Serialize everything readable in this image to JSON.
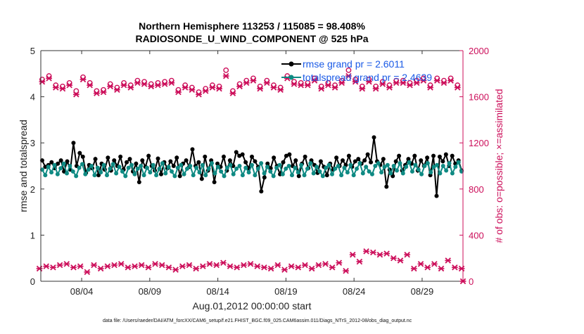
{
  "chart_data": {
    "type": "line",
    "title_line1": "Northern Hemisphere 113253 / 115085 = 98.408%",
    "title_line2": "RADIOSONDE_U_WIND_COMPONENT @ 525 hPa",
    "xlabel": "Aug.01,2012 00:00:00 start",
    "ylabel_left": "rmse and totalspread",
    "ylabel_right": "# of obs: o=possible; ×=assimilated",
    "footer": "data file: /Users/raeder/DAI/ATM_forcXX/CAM6_setup/f.e21.FHIST_BGC.f09_025.CAM6assim.011/Diags_NTrS_2012-08/obs_diag_output.nc",
    "x_tick_labels": [
      "08/04",
      "08/09",
      "08/14",
      "08/19",
      "08/24",
      "08/29"
    ],
    "x_tick_days": [
      4,
      9,
      14,
      19,
      24,
      29
    ],
    "xlim_days": [
      1,
      32
    ],
    "ylim_left": [
      0,
      5
    ],
    "y_ticks_left": [
      "0",
      "1",
      "2",
      "3",
      "4",
      "5"
    ],
    "ylim_right": [
      0,
      2000
    ],
    "y_ticks_right": [
      "0",
      "400",
      "800",
      "1200",
      "1600",
      "2000"
    ],
    "legend": [
      {
        "name": "rmse grand pr = 2.6011",
        "color": "#000000"
      },
      {
        "name": "totalspread grand pr = 2.4639",
        "color": "#0f8a83"
      }
    ],
    "colors": {
      "rmse": "#000000",
      "spread": "#0f8a83",
      "obs": "#cc0e5a",
      "legend_text": "#1a5ae6"
    },
    "rmse": [
      2.62,
      2.48,
      2.52,
      2.58,
      2.45,
      2.55,
      2.62,
      2.38,
      2.6,
      2.42,
      3.0,
      2.5,
      2.78,
      2.7,
      2.35,
      2.52,
      2.45,
      2.65,
      2.3,
      2.55,
      2.42,
      2.68,
      2.4,
      2.62,
      2.5,
      2.7,
      2.42,
      2.58,
      2.65,
      2.38,
      2.55,
      2.15,
      2.62,
      2.48,
      2.72,
      2.5,
      2.4,
      2.66,
      2.32,
      2.58,
      2.45,
      2.6,
      2.5,
      2.68,
      2.28,
      2.55,
      2.62,
      2.48,
      2.86,
      2.5,
      2.58,
      2.22,
      2.7,
      2.4,
      2.62,
      2.15,
      2.55,
      2.48,
      2.7,
      2.4,
      2.62,
      2.5,
      2.8,
      2.72,
      2.75,
      2.58,
      2.45,
      2.7,
      2.6,
      2.48,
      1.95,
      2.25,
      2.55,
      2.45,
      2.68,
      2.5,
      2.32,
      2.58,
      2.72,
      2.75,
      2.5,
      2.62,
      2.28,
      2.55,
      2.7,
      2.45,
      2.62,
      2.52,
      2.35,
      2.6,
      2.48,
      2.3,
      2.55,
      2.42,
      2.68,
      2.5,
      2.62,
      2.52,
      2.72,
      2.48,
      2.6,
      2.65,
      2.55,
      2.62,
      2.75,
      2.58,
      3.12,
      2.6,
      2.52,
      2.65,
      2.05,
      2.42,
      2.28,
      2.6,
      2.72,
      2.4,
      2.52,
      2.65,
      2.55,
      2.72,
      2.4,
      2.62,
      2.5,
      2.68,
      2.3,
      2.72,
      1.85,
      2.7,
      2.6,
      2.75,
      2.5,
      2.72,
      2.55,
      2.62,
      2.4
    ],
    "spread": [
      2.42,
      2.3,
      2.48,
      2.36,
      2.52,
      2.32,
      2.45,
      2.55,
      2.34,
      2.5,
      2.38,
      2.28,
      2.46,
      2.54,
      2.32,
      2.42,
      2.5,
      2.3,
      2.46,
      2.36,
      2.52,
      2.3,
      2.44,
      2.54,
      2.34,
      2.48,
      2.38,
      2.28,
      2.46,
      2.52,
      2.32,
      2.44,
      2.5,
      2.3,
      2.46,
      2.36,
      2.52,
      2.3,
      2.44,
      2.56,
      2.34,
      2.48,
      2.38,
      2.28,
      2.46,
      2.52,
      2.32,
      2.44,
      2.5,
      2.3,
      2.46,
      2.36,
      2.52,
      2.3,
      2.44,
      2.56,
      2.34,
      2.48,
      2.38,
      2.28,
      2.46,
      2.52,
      2.32,
      2.44,
      2.5,
      2.3,
      2.46,
      2.36,
      2.52,
      2.3,
      2.44,
      2.56,
      2.34,
      2.48,
      2.38,
      2.28,
      2.46,
      2.52,
      2.32,
      2.44,
      2.5,
      2.3,
      2.46,
      2.36,
      2.52,
      2.3,
      2.44,
      2.56,
      2.34,
      2.48,
      2.38,
      2.28,
      2.46,
      2.52,
      2.32,
      2.44,
      2.5,
      2.3,
      2.46,
      2.36,
      2.52,
      2.3,
      2.44,
      2.56,
      2.34,
      2.48,
      2.38,
      2.32,
      2.5,
      2.56,
      2.36,
      2.48,
      2.52,
      2.34,
      2.5,
      2.4,
      2.56,
      2.34,
      2.48,
      2.58,
      2.38,
      2.52,
      2.42,
      2.32,
      2.5,
      2.56,
      2.36,
      2.48,
      2.52,
      2.34,
      2.5,
      2.4,
      2.56,
      2.34,
      2.48,
      2.58,
      2.38
    ],
    "obs_possible": [
      [
        1.1,
        1750
      ],
      [
        1.6,
        1780
      ],
      [
        2.1,
        1700
      ],
      [
        2.6,
        1690
      ],
      [
        3.1,
        1720
      ],
      [
        3.6,
        1650
      ],
      [
        4.1,
        1770
      ],
      [
        4.6,
        1720
      ],
      [
        5.1,
        1650
      ],
      [
        5.6,
        1660
      ],
      [
        6.1,
        1710
      ],
      [
        6.6,
        1680
      ],
      [
        7.1,
        1720
      ],
      [
        7.6,
        1700
      ],
      [
        8.1,
        1740
      ],
      [
        8.6,
        1730
      ],
      [
        9.1,
        1710
      ],
      [
        9.6,
        1720
      ],
      [
        10.1,
        1730
      ],
      [
        10.6,
        1740
      ],
      [
        11.1,
        1660
      ],
      [
        11.6,
        1700
      ],
      [
        12.1,
        1680
      ],
      [
        12.6,
        1640
      ],
      [
        13.1,
        1670
      ],
      [
        13.6,
        1700
      ],
      [
        14.1,
        1690
      ],
      [
        14.6,
        1830
      ],
      [
        15.1,
        1650
      ],
      [
        15.6,
        1710
      ],
      [
        16.1,
        1740
      ],
      [
        16.6,
        1760
      ],
      [
        17.1,
        1690
      ],
      [
        17.6,
        1740
      ],
      [
        18.1,
        1700
      ],
      [
        18.6,
        1680
      ],
      [
        19.1,
        1780
      ],
      [
        19.6,
        1730
      ],
      [
        20.1,
        1720
      ],
      [
        20.6,
        1720
      ],
      [
        21.1,
        1760
      ],
      [
        21.6,
        1690
      ],
      [
        22.1,
        1720
      ],
      [
        22.6,
        1700
      ],
      [
        23.1,
        1740
      ],
      [
        23.6,
        1830
      ],
      [
        24.1,
        1750
      ],
      [
        24.6,
        1690
      ],
      [
        25.1,
        1750
      ],
      [
        25.6,
        1690
      ],
      [
        26.1,
        1730
      ],
      [
        26.6,
        1700
      ],
      [
        27.1,
        1740
      ],
      [
        27.6,
        1740
      ],
      [
        28.1,
        1720
      ],
      [
        28.6,
        1740
      ],
      [
        29.1,
        1760
      ],
      [
        29.6,
        1700
      ],
      [
        30.1,
        1760
      ],
      [
        30.6,
        1740
      ],
      [
        31.1,
        1760
      ],
      [
        31.6,
        1700
      ]
    ],
    "obs_assimilated": [
      [
        0.9,
        110
      ],
      [
        1.1,
        1730
      ],
      [
        1.6,
        1760
      ],
      [
        1.4,
        130
      ],
      [
        2.1,
        1680
      ],
      [
        2.6,
        1670
      ],
      [
        1.9,
        120
      ],
      [
        2.4,
        140
      ],
      [
        2.9,
        150
      ],
      [
        3.1,
        1700
      ],
      [
        3.6,
        1620
      ],
      [
        3.4,
        120
      ],
      [
        3.9,
        130
      ],
      [
        4.1,
        1750
      ],
      [
        4.4,
        80
      ],
      [
        4.6,
        1700
      ],
      [
        4.9,
        140
      ],
      [
        5.1,
        1630
      ],
      [
        5.4,
        110
      ],
      [
        5.6,
        1640
      ],
      [
        5.9,
        130
      ],
      [
        6.1,
        1690
      ],
      [
        6.4,
        140
      ],
      [
        6.6,
        1660
      ],
      [
        6.9,
        150
      ],
      [
        7.1,
        1700
      ],
      [
        7.4,
        120
      ],
      [
        7.6,
        1680
      ],
      [
        7.9,
        130
      ],
      [
        8.1,
        1720
      ],
      [
        8.4,
        140
      ],
      [
        8.6,
        1710
      ],
      [
        8.9,
        120
      ],
      [
        9.1,
        1690
      ],
      [
        9.4,
        150
      ],
      [
        9.6,
        1700
      ],
      [
        9.9,
        140
      ],
      [
        10.1,
        1710
      ],
      [
        10.4,
        120
      ],
      [
        10.6,
        1720
      ],
      [
        10.9,
        100
      ],
      [
        11.1,
        1640
      ],
      [
        11.4,
        130
      ],
      [
        11.6,
        1680
      ],
      [
        11.9,
        140
      ],
      [
        12.1,
        1660
      ],
      [
        12.4,
        110
      ],
      [
        12.6,
        1620
      ],
      [
        12.9,
        130
      ],
      [
        13.1,
        1650
      ],
      [
        13.4,
        150
      ],
      [
        13.6,
        1680
      ],
      [
        13.9,
        140
      ],
      [
        14.1,
        1670
      ],
      [
        14.4,
        160
      ],
      [
        14.6,
        1780
      ],
      [
        14.9,
        130
      ],
      [
        15.1,
        1630
      ],
      [
        15.4,
        120
      ],
      [
        15.6,
        1690
      ],
      [
        15.9,
        140
      ],
      [
        16.1,
        1720
      ],
      [
        16.4,
        150
      ],
      [
        16.6,
        1740
      ],
      [
        16.9,
        130
      ],
      [
        17.1,
        1670
      ],
      [
        17.4,
        120
      ],
      [
        17.6,
        1720
      ],
      [
        17.9,
        110
      ],
      [
        18.1,
        1680
      ],
      [
        18.4,
        140
      ],
      [
        18.6,
        1660
      ],
      [
        18.9,
        100
      ],
      [
        19.1,
        1760
      ],
      [
        19.4,
        130
      ],
      [
        19.6,
        1710
      ],
      [
        19.9,
        120
      ],
      [
        20.1,
        1700
      ],
      [
        20.4,
        140
      ],
      [
        20.6,
        1700
      ],
      [
        20.9,
        110
      ],
      [
        21.1,
        1740
      ],
      [
        21.4,
        140
      ],
      [
        21.6,
        1670
      ],
      [
        21.9,
        150
      ],
      [
        22.1,
        1700
      ],
      [
        22.4,
        120
      ],
      [
        22.6,
        1680
      ],
      [
        22.9,
        160
      ],
      [
        23.1,
        1720
      ],
      [
        23.4,
        90
      ],
      [
        23.6,
        1780
      ],
      [
        23.9,
        230
      ],
      [
        24.1,
        1730
      ],
      [
        24.4,
        170
      ],
      [
        24.6,
        1670
      ],
      [
        24.9,
        260
      ],
      [
        25.1,
        1730
      ],
      [
        25.4,
        250
      ],
      [
        25.6,
        1670
      ],
      [
        25.9,
        230
      ],
      [
        26.1,
        1710
      ],
      [
        26.4,
        240
      ],
      [
        26.6,
        1680
      ],
      [
        26.9,
        200
      ],
      [
        27.1,
        1720
      ],
      [
        27.4,
        180
      ],
      [
        27.6,
        1720
      ],
      [
        27.9,
        230
      ],
      [
        28.1,
        1700
      ],
      [
        28.4,
        110
      ],
      [
        28.6,
        1720
      ],
      [
        28.9,
        150
      ],
      [
        29.1,
        1740
      ],
      [
        29.4,
        120
      ],
      [
        29.6,
        1680
      ],
      [
        29.9,
        150
      ],
      [
        30.1,
        1740
      ],
      [
        30.4,
        110
      ],
      [
        30.6,
        1720
      ],
      [
        30.9,
        180
      ],
      [
        31.1,
        1740
      ],
      [
        31.4,
        120
      ],
      [
        31.6,
        1680
      ],
      [
        31.9,
        110
      ],
      [
        32.0,
        0
      ]
    ]
  }
}
